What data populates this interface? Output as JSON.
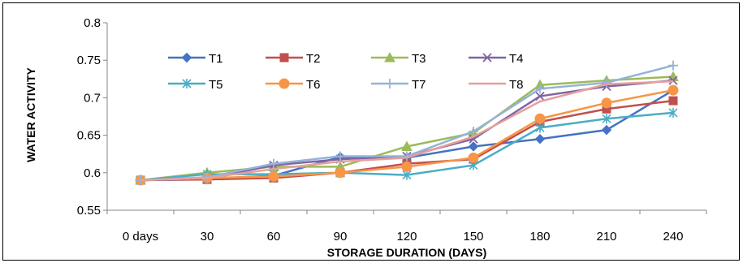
{
  "chart_data": {
    "type": "line",
    "title": "",
    "xlabel": "STORAGE DURATION (DAYS)",
    "ylabel": "WATER ACTIVITY",
    "categories": [
      "0 days",
      "30",
      "60",
      "90",
      "120",
      "150",
      "180",
      "210",
      "240"
    ],
    "ylim": [
      0.55,
      0.8
    ],
    "yticks": [
      "0.55",
      "0.6",
      "0.65",
      "0.7",
      "0.75",
      "0.8"
    ],
    "grid": false,
    "legend_position": "top-left, inside plot area, 4 columns",
    "series": [
      {
        "name": "T1",
        "color": "#4472C4",
        "marker": "diamond",
        "values": [
          0.59,
          0.592,
          0.596,
          0.621,
          0.62,
          0.635,
          0.645,
          0.657,
          0.71
        ]
      },
      {
        "name": "T2",
        "color": "#C0504D",
        "marker": "square",
        "values": [
          0.59,
          0.591,
          0.593,
          0.6,
          0.612,
          0.618,
          0.668,
          0.685,
          0.696
        ]
      },
      {
        "name": "T3",
        "color": "#9BBB59",
        "marker": "triangle",
        "values": [
          0.59,
          0.6,
          0.608,
          0.608,
          0.635,
          0.653,
          0.717,
          0.723,
          0.728
        ]
      },
      {
        "name": "T4",
        "color": "#8064A2",
        "marker": "x",
        "values": [
          0.59,
          0.592,
          0.61,
          0.618,
          0.622,
          0.645,
          0.702,
          0.715,
          0.723
        ]
      },
      {
        "name": "T5",
        "color": "#4BACC6",
        "marker": "star",
        "values": [
          0.59,
          0.598,
          0.598,
          0.6,
          0.597,
          0.61,
          0.66,
          0.672,
          0.68
        ]
      },
      {
        "name": "T6",
        "color": "#F79646",
        "marker": "circle",
        "values": [
          0.59,
          0.593,
          0.595,
          0.6,
          0.608,
          0.62,
          0.672,
          0.693,
          0.71
        ]
      },
      {
        "name": "T7",
        "color": "#95B3D7",
        "marker": "plus",
        "values": [
          0.59,
          0.594,
          0.612,
          0.622,
          0.622,
          0.655,
          0.712,
          0.72,
          0.743
        ]
      },
      {
        "name": "T8",
        "color": "#E6A09C",
        "marker": "none",
        "values": [
          0.59,
          0.593,
          0.605,
          0.615,
          0.62,
          0.648,
          0.695,
          0.718,
          0.722
        ]
      }
    ]
  }
}
